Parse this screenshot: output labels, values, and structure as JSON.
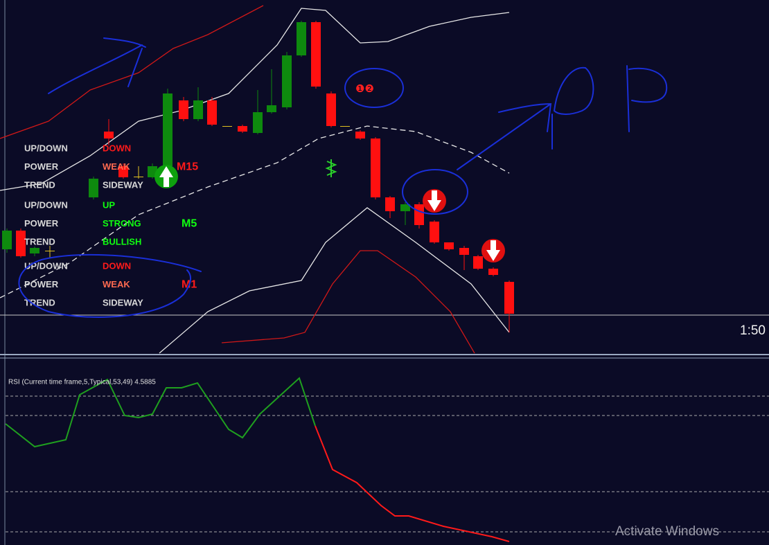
{
  "panels": [
    {
      "timeframe": "M15",
      "rows": [
        {
          "label": "UP/DOWN",
          "value": "DOWN"
        },
        {
          "label": "POWER",
          "value": "WEAK"
        },
        {
          "label": "TREND",
          "value": "SIDEWAY"
        }
      ]
    },
    {
      "timeframe": "M5",
      "rows": [
        {
          "label": "UP/DOWN",
          "value": "UP"
        },
        {
          "label": "POWER",
          "value": "STRONG"
        },
        {
          "label": "TREND",
          "value": "BULLISH"
        }
      ]
    },
    {
      "timeframe": "M1",
      "rows": [
        {
          "label": "UP/DOWN",
          "value": "DOWN"
        },
        {
          "label": "POWER",
          "value": "WEAK"
        },
        {
          "label": "TREND",
          "value": "SIDEWAY"
        }
      ]
    }
  ],
  "signal_marks": "❶❷",
  "price_label": "1:50",
  "indicator": {
    "title": "RSI (Current time frame,5,Typical,53,49) 4.5885"
  },
  "watermark": "Activate Windows"
}
